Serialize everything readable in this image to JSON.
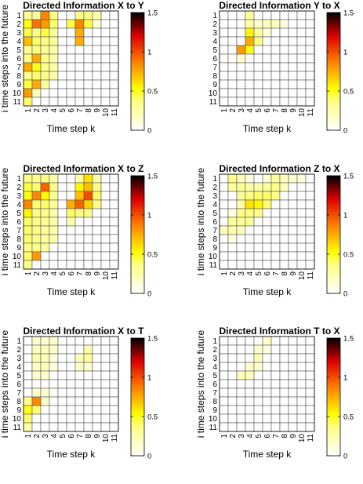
{
  "figure": {
    "colormap": "hot (reversed)",
    "cell_outline": "#555555"
  },
  "chart_data": [
    {
      "type": "heatmap",
      "title": "Directed Information X to Y",
      "xlabel": "Time step k",
      "ylabel": "i time steps into the future",
      "x": [
        "1",
        "2",
        "3",
        "4",
        "5",
        "6",
        "7",
        "8",
        "9",
        "10",
        "11"
      ],
      "y": [
        "1",
        "2",
        "3",
        "4",
        "5",
        "6",
        "7",
        "8",
        "9",
        "10",
        "11"
      ],
      "zlim": [
        0,
        1.5
      ],
      "colorbar_ticks": [
        "0",
        "0.5",
        "1",
        "1.5"
      ],
      "values": [
        [
          0.3,
          0.3,
          0.85,
          0.35,
          0,
          0,
          0.35,
          0.35,
          0.25,
          0,
          0
        ],
        [
          0.5,
          0.9,
          0.8,
          0.4,
          0,
          0.45,
          0.85,
          0.45,
          0.15,
          0,
          0
        ],
        [
          0.45,
          0.35,
          0.45,
          0.3,
          0,
          0,
          0.75,
          0,
          0,
          0,
          0
        ],
        [
          0.7,
          0.4,
          0.35,
          0.3,
          0,
          0,
          0.75,
          0,
          0,
          0,
          0
        ],
        [
          0.3,
          0.35,
          0.3,
          0.25,
          0,
          0,
          0,
          0,
          0,
          0,
          0
        ],
        [
          0.35,
          0.75,
          0.35,
          0.25,
          0,
          0,
          0,
          0,
          0,
          0,
          0
        ],
        [
          0.75,
          0.5,
          0.35,
          0.25,
          0,
          0,
          0,
          0,
          0,
          0,
          0
        ],
        [
          0.35,
          0.4,
          0.35,
          0.25,
          0,
          0,
          0,
          0,
          0,
          0,
          0
        ],
        [
          0.45,
          0.75,
          0.3,
          0,
          0,
          0,
          0,
          0,
          0,
          0,
          0
        ],
        [
          0.8,
          0.2,
          0,
          0,
          0,
          0,
          0,
          0,
          0,
          0,
          0
        ],
        [
          0.4,
          0,
          0,
          0,
          0,
          0,
          0,
          0,
          0,
          0,
          0
        ]
      ]
    },
    {
      "type": "heatmap",
      "title": "Directed Information Y to X",
      "xlabel": "Time step k",
      "ylabel": "",
      "x": [
        "1",
        "2",
        "3",
        "4",
        "5",
        "6",
        "7",
        "8",
        "9",
        "10",
        "11"
      ],
      "y": [
        "1",
        "2",
        "3",
        "4",
        "5",
        "6",
        "7",
        "8",
        "9",
        "10",
        "11"
      ],
      "zlim": [
        0,
        1.5
      ],
      "colorbar_ticks": [
        "0",
        "0.5",
        "1",
        "1.5"
      ],
      "values": [
        [
          0,
          0,
          0,
          0.3,
          0,
          0,
          0,
          0,
          0,
          0,
          0
        ],
        [
          0,
          0,
          0,
          0.25,
          0.15,
          0.2,
          0.2,
          0.1,
          0,
          0,
          0
        ],
        [
          0,
          0,
          0,
          0.55,
          0.3,
          0.1,
          0,
          0,
          0,
          0,
          0
        ],
        [
          0,
          0,
          0,
          0.75,
          0.35,
          0,
          0,
          0,
          0,
          0,
          0
        ],
        [
          0,
          0,
          0.8,
          0.5,
          0,
          0,
          0,
          0,
          0,
          0,
          0
        ],
        [
          0,
          0,
          0.15,
          0,
          0,
          0,
          0,
          0,
          0,
          0,
          0
        ],
        [
          0,
          0,
          0,
          0,
          0,
          0,
          0,
          0,
          0,
          0,
          0
        ],
        [
          0,
          0,
          0,
          0,
          0,
          0,
          0,
          0,
          0,
          0,
          0
        ],
        [
          0,
          0,
          0,
          0,
          0,
          0,
          0,
          0,
          0,
          0,
          0
        ],
        [
          0,
          0,
          0,
          0,
          0,
          0,
          0,
          0,
          0,
          0,
          0
        ],
        [
          0,
          0,
          0,
          0,
          0,
          0,
          0,
          0,
          0,
          0,
          0
        ]
      ]
    },
    {
      "type": "heatmap",
      "title": "Directed Information X to Z",
      "xlabel": "Time step k",
      "ylabel": "i time steps into the future",
      "x": [
        "1",
        "2",
        "3",
        "4",
        "5",
        "6",
        "7",
        "8",
        "9",
        "10",
        "11"
      ],
      "y": [
        "1",
        "2",
        "3",
        "4",
        "5",
        "6",
        "7",
        "8",
        "9",
        "10",
        "11"
      ],
      "zlim": [
        0,
        1.5
      ],
      "colorbar_ticks": [
        "0",
        "0.5",
        "1",
        "1.5"
      ],
      "values": [
        [
          0.35,
          0.35,
          0.35,
          0.25,
          0,
          0,
          0.25,
          0.6,
          0.25,
          0,
          0
        ],
        [
          0.45,
          0.4,
          0.95,
          0.35,
          0,
          0,
          0.55,
          0.7,
          0.35,
          0,
          0
        ],
        [
          0.5,
          0.85,
          0.55,
          0.3,
          0,
          0,
          0.7,
          1.0,
          0.4,
          0,
          0
        ],
        [
          0.85,
          0.4,
          0.4,
          0.3,
          0,
          0.75,
          0.95,
          0.65,
          0.35,
          0,
          0
        ],
        [
          0.55,
          0.35,
          0.35,
          0.25,
          0,
          0.4,
          0.35,
          0.35,
          0,
          0,
          0
        ],
        [
          0.4,
          0.35,
          0.3,
          0.25,
          0,
          0.25,
          0,
          0,
          0,
          0,
          0
        ],
        [
          0.4,
          0.35,
          0.3,
          0.25,
          0,
          0,
          0,
          0,
          0,
          0,
          0
        ],
        [
          0.4,
          0.35,
          0.3,
          0.25,
          0,
          0,
          0,
          0,
          0,
          0,
          0
        ],
        [
          0.35,
          0.35,
          0.3,
          0,
          0,
          0,
          0,
          0,
          0,
          0,
          0
        ],
        [
          0.4,
          0.8,
          0,
          0,
          0,
          0,
          0,
          0,
          0,
          0,
          0
        ],
        [
          0.35,
          0,
          0,
          0,
          0,
          0,
          0,
          0,
          0,
          0,
          0
        ]
      ]
    },
    {
      "type": "heatmap",
      "title": "Directed Information Z to X",
      "xlabel": "Time step k",
      "ylabel": "i time steps into the future",
      "x": [
        "1",
        "2",
        "3",
        "4",
        "5",
        "6",
        "7",
        "8",
        "9",
        "10",
        "11"
      ],
      "y": [
        "1",
        "2",
        "3",
        "4",
        "5",
        "6",
        "7",
        "8",
        "9",
        "10",
        "11"
      ],
      "zlim": [
        0,
        1.5
      ],
      "colorbar_ticks": [
        "0",
        "0.5",
        "1",
        "1.5"
      ],
      "values": [
        [
          0,
          0.35,
          0.2,
          0.1,
          0,
          0.15,
          0.3,
          0.2,
          0.15,
          0.1,
          0
        ],
        [
          0,
          0.3,
          0.3,
          0.25,
          0.25,
          0.3,
          0.35,
          0.2,
          0,
          0,
          0
        ],
        [
          0,
          0,
          0.3,
          0.35,
          0.4,
          0.4,
          0.35,
          0,
          0,
          0,
          0
        ],
        [
          0,
          0,
          0.25,
          0.6,
          0.55,
          0.4,
          0,
          0,
          0,
          0,
          0
        ],
        [
          0,
          0.1,
          0.35,
          0.35,
          0.35,
          0,
          0,
          0,
          0,
          0,
          0
        ],
        [
          0,
          0.3,
          0.3,
          0.3,
          0,
          0,
          0,
          0,
          0,
          0,
          0
        ],
        [
          0.2,
          0.25,
          0.2,
          0,
          0,
          0,
          0,
          0,
          0,
          0,
          0
        ],
        [
          0,
          0.1,
          0,
          0,
          0,
          0,
          0,
          0,
          0,
          0,
          0
        ],
        [
          0,
          0,
          0,
          0,
          0,
          0,
          0,
          0,
          0,
          0,
          0
        ],
        [
          0,
          0,
          0,
          0,
          0,
          0,
          0,
          0,
          0,
          0,
          0
        ],
        [
          0,
          0,
          0,
          0,
          0,
          0,
          0,
          0,
          0,
          0,
          0
        ]
      ]
    },
    {
      "type": "heatmap",
      "title": "Directed Information X to T",
      "xlabel": "Time step k",
      "ylabel": "i time steps into the future",
      "x": [
        "1",
        "2",
        "3",
        "4",
        "5",
        "6",
        "7",
        "8",
        "9",
        "10",
        "11"
      ],
      "y": [
        "1",
        "2",
        "3",
        "4",
        "5",
        "6",
        "7",
        "8",
        "9",
        "10",
        "11"
      ],
      "zlim": [
        0,
        1.5
      ],
      "colorbar_ticks": [
        "0",
        "0.5",
        "1",
        "1.5"
      ],
      "values": [
        [
          0,
          0.15,
          0.15,
          0.15,
          0,
          0,
          0,
          0,
          0,
          0,
          0
        ],
        [
          0,
          0.2,
          0.2,
          0.15,
          0,
          0,
          0,
          0.25,
          0,
          0,
          0
        ],
        [
          0,
          0.25,
          0.2,
          0.1,
          0,
          0,
          0.2,
          0.3,
          0,
          0,
          0
        ],
        [
          0,
          0.2,
          0.2,
          0.1,
          0,
          0,
          0.15,
          0.15,
          0,
          0,
          0
        ],
        [
          0,
          0.15,
          0.15,
          0,
          0,
          0,
          0,
          0,
          0,
          0,
          0
        ],
        [
          0,
          0,
          0,
          0,
          0,
          0,
          0,
          0,
          0,
          0,
          0
        ],
        [
          0,
          0.15,
          0.15,
          0,
          0,
          0,
          0,
          0,
          0,
          0,
          0
        ],
        [
          0.35,
          0.85,
          0.15,
          0,
          0,
          0,
          0,
          0,
          0,
          0,
          0
        ],
        [
          0.5,
          0.4,
          0,
          0,
          0,
          0,
          0,
          0,
          0,
          0,
          0
        ],
        [
          0.4,
          0,
          0,
          0,
          0,
          0,
          0,
          0,
          0,
          0,
          0
        ],
        [
          0.25,
          0,
          0,
          0,
          0,
          0,
          0,
          0,
          0,
          0,
          0
        ]
      ]
    },
    {
      "type": "heatmap",
      "title": "Directed Information T to X",
      "xlabel": "Time step k",
      "ylabel": "i time steps into the future",
      "x": [
        "1",
        "2",
        "3",
        "4",
        "5",
        "6",
        "7",
        "8",
        "9",
        "10",
        "11"
      ],
      "y": [
        "1",
        "2",
        "3",
        "4",
        "5",
        "6",
        "7",
        "8",
        "9",
        "10",
        "11"
      ],
      "zlim": [
        0,
        1.5
      ],
      "colorbar_ticks": [
        "0",
        "0.5",
        "1",
        "1.5"
      ],
      "values": [
        [
          0,
          0,
          0,
          0,
          0,
          0.15,
          0,
          0,
          0,
          0,
          0
        ],
        [
          0,
          0,
          0,
          0,
          0.15,
          0.1,
          0,
          0,
          0,
          0,
          0
        ],
        [
          0,
          0,
          0,
          0,
          0.2,
          0,
          0,
          0,
          0,
          0,
          0
        ],
        [
          0,
          0,
          0,
          0.15,
          0.15,
          0,
          0,
          0,
          0,
          0,
          0
        ],
        [
          0,
          0,
          0.2,
          0.2,
          0,
          0,
          0,
          0,
          0,
          0,
          0
        ],
        [
          0,
          0,
          0,
          0,
          0,
          0,
          0,
          0,
          0,
          0,
          0
        ],
        [
          0,
          0,
          0,
          0,
          0,
          0,
          0,
          0,
          0,
          0,
          0
        ],
        [
          0,
          0,
          0,
          0,
          0,
          0,
          0,
          0,
          0,
          0,
          0
        ],
        [
          0,
          0,
          0,
          0,
          0,
          0,
          0,
          0,
          0,
          0,
          0
        ],
        [
          0,
          0,
          0,
          0,
          0,
          0,
          0,
          0,
          0,
          0,
          0
        ],
        [
          0,
          0,
          0,
          0,
          0,
          0,
          0,
          0,
          0,
          0,
          0
        ]
      ]
    }
  ]
}
